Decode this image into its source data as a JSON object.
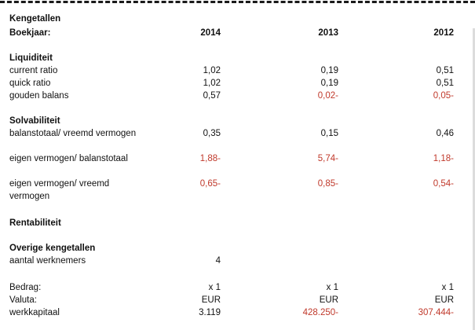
{
  "header": {
    "title": "Kengetallen",
    "year_label": "Boekjaar:",
    "years": [
      "2014",
      "2013",
      "2012"
    ]
  },
  "liquiditeit": {
    "heading": "Liquiditeit",
    "rows": [
      {
        "label": "current ratio",
        "values": [
          "1,02",
          "0,19",
          "0,51"
        ]
      },
      {
        "label": "quick ratio",
        "values": [
          "1,02",
          "0,19",
          "0,51"
        ]
      },
      {
        "label": "gouden balans",
        "values": [
          "0,57",
          "0,02-",
          "0,05-"
        ]
      }
    ]
  },
  "solvabiliteit": {
    "heading": "Solvabiliteit",
    "rows": [
      {
        "label": "balanstotaal/ vreemd vermogen",
        "values": [
          "0,35",
          "0,15",
          "0,46"
        ]
      },
      {
        "label": "eigen vermogen/ balanstotaal",
        "values": [
          "1,88-",
          "5,74-",
          "1,18-"
        ]
      },
      {
        "label": "eigen vermogen/ vreemd vermogen",
        "values": [
          "0,65-",
          "0,85-",
          "0,54-"
        ]
      }
    ]
  },
  "rentabiliteit": {
    "heading": "Rentabiliteit"
  },
  "overige": {
    "heading": "Overige kengetallen",
    "werknemers_label": "aantal werknemers",
    "werknemers_value": "4"
  },
  "footer": {
    "rows": [
      {
        "label": "Bedrag:",
        "values": [
          "x 1",
          "x 1",
          "x 1"
        ]
      },
      {
        "label": "Valuta:",
        "values": [
          "EUR",
          "EUR",
          "EUR"
        ]
      },
      {
        "label": "werkkapitaal",
        "values": [
          "3.119",
          "428.250-",
          "307.444-"
        ]
      }
    ]
  },
  "colors": {
    "text": "#111111",
    "negative": "#c0392b"
  }
}
